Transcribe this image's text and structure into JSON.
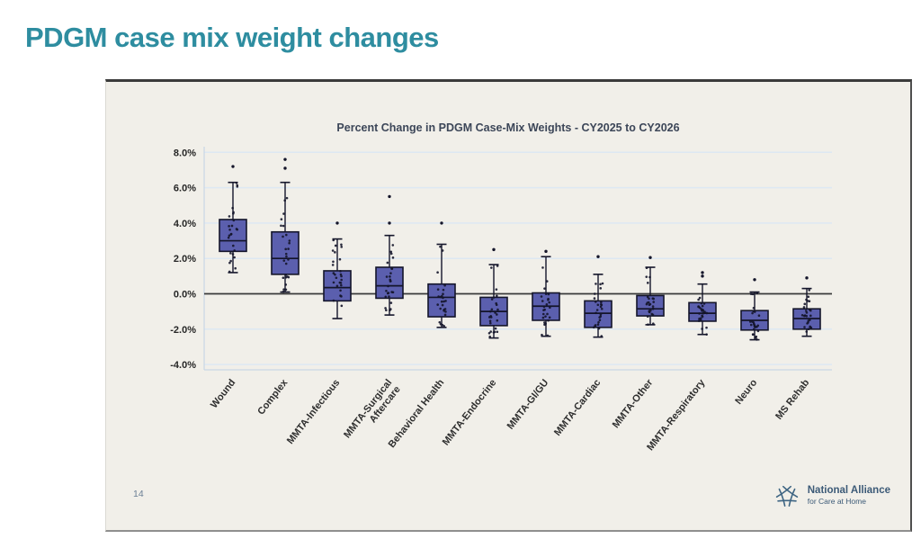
{
  "slide": {
    "title": "PDGM case mix weight changes",
    "page_number": "14",
    "logo": {
      "icon": "alliance-star-icon",
      "name": "National Alliance",
      "tagline": "for Care at Home"
    }
  },
  "chart_data": {
    "type": "box",
    "title": "Percent Change in PDGM Case-Mix Weights - CY2025 to CY2026",
    "xlabel": "",
    "ylabel": "",
    "units": "percent",
    "grid": "horizontal",
    "zero_line": true,
    "show_jitter_points": true,
    "ylim": [
      -4.4,
      8.4
    ],
    "y_ticks": [
      8,
      6,
      4,
      2,
      0,
      -2,
      -4
    ],
    "y_tick_labels": [
      "8.0%",
      "6.0%",
      "4.0%",
      "2.0%",
      "0.0%",
      "-2.0%",
      "-4.0%"
    ],
    "categories": [
      "Wound",
      "Complex",
      "MMTA-Infectious",
      "MMTA-Surgical\nAftercare",
      "Behavioral Health",
      "MMTA-Endocrine",
      "MMTA-GI/GU",
      "MMTA-Cardiac",
      "MMTA-Other",
      "MMTA-Respiratory",
      "Neuro",
      "MS Rehab"
    ],
    "series": [
      {
        "name": "Wound",
        "low": 1.2,
        "q1": 2.4,
        "median": 3.0,
        "q3": 4.2,
        "high": 6.3,
        "outliers": [
          7.2
        ]
      },
      {
        "name": "Complex",
        "low": 0.1,
        "q1": 1.1,
        "median": 2.0,
        "q3": 3.5,
        "high": 6.3,
        "outliers": [
          7.1,
          7.6
        ]
      },
      {
        "name": "MMTA-Infectious",
        "low": -1.4,
        "q1": -0.4,
        "median": 0.35,
        "q3": 1.3,
        "high": 3.1,
        "outliers": [
          4.0
        ]
      },
      {
        "name": "MMTA-Surgical Aftercare",
        "low": -1.2,
        "q1": -0.25,
        "median": 0.45,
        "q3": 1.5,
        "high": 3.3,
        "outliers": [
          4.0,
          5.5
        ]
      },
      {
        "name": "Behavioral Health",
        "low": -1.9,
        "q1": -1.3,
        "median": -0.2,
        "q3": 0.55,
        "high": 2.8,
        "outliers": [
          4.0
        ]
      },
      {
        "name": "MMTA-Endocrine",
        "low": -2.5,
        "q1": -1.8,
        "median": -1.0,
        "q3": -0.2,
        "high": 1.65,
        "outliers": [
          2.5
        ]
      },
      {
        "name": "MMTA-GI/GU",
        "low": -2.4,
        "q1": -1.5,
        "median": -0.7,
        "q3": 0.05,
        "high": 2.1,
        "outliers": [
          2.4
        ]
      },
      {
        "name": "MMTA-Cardiac",
        "low": -2.45,
        "q1": -1.9,
        "median": -1.1,
        "q3": -0.4,
        "high": 1.1,
        "outliers": [
          2.1
        ]
      },
      {
        "name": "MMTA-Other",
        "low": -1.75,
        "q1": -1.25,
        "median": -0.85,
        "q3": -0.1,
        "high": 1.5,
        "outliers": [
          2.05
        ]
      },
      {
        "name": "MMTA-Respiratory",
        "low": -2.3,
        "q1": -1.55,
        "median": -1.1,
        "q3": -0.5,
        "high": 0.55,
        "outliers": [
          1.0,
          1.2
        ]
      },
      {
        "name": "Neuro",
        "low": -2.6,
        "q1": -2.05,
        "median": -1.5,
        "q3": -0.95,
        "high": 0.1,
        "outliers": [
          0.8
        ]
      },
      {
        "name": "MS Rehab",
        "low": -2.4,
        "q1": -2.0,
        "median": -1.4,
        "q3": -0.85,
        "high": 0.3,
        "outliers": [
          0.9
        ]
      }
    ],
    "colors": {
      "box_fill": "#5b5fae",
      "box_edge": "#14152a",
      "median": "#14152a",
      "point": "#14152a",
      "grid": "#dde8f3",
      "zero_line": "#3a3a3a",
      "spine": "#c9d6e6",
      "tick_label": "#262626",
      "category_label": "#2e2e2e",
      "title": "#3c4658",
      "panel_bg": "#f1efe9",
      "slide_title": "#2e8da0",
      "logo": "#3c5a77"
    }
  }
}
